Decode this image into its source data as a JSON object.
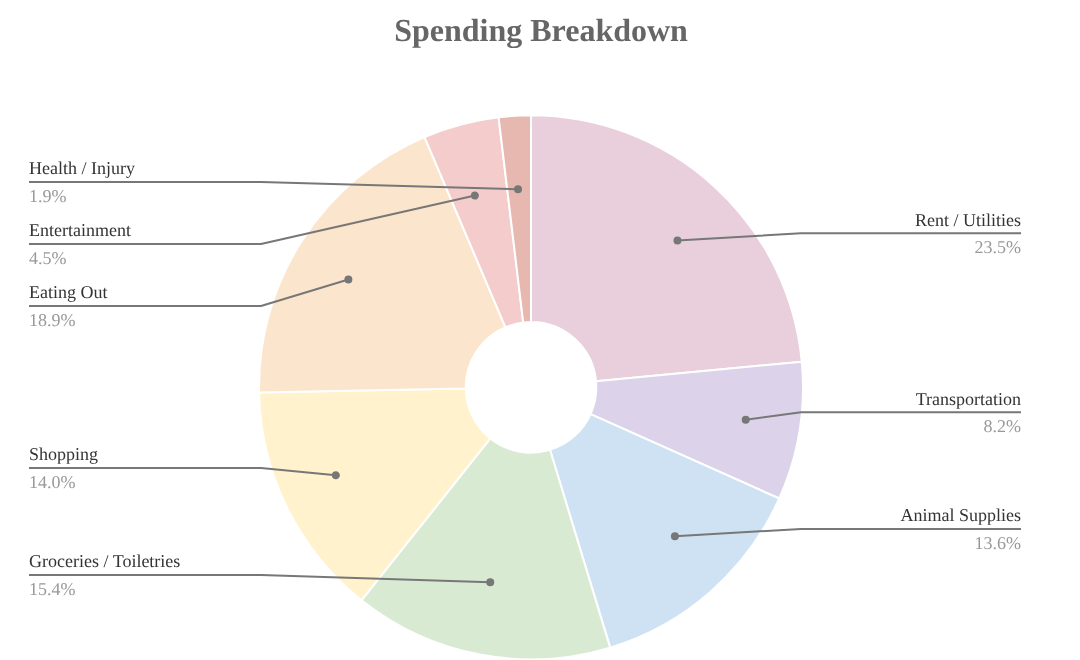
{
  "chart_data": {
    "type": "donut",
    "title": "Spending Breakdown",
    "categories": [
      "Rent / Utilities",
      "Transportation",
      "Animal Supplies",
      "Groceries / Toiletries",
      "Shopping",
      "Eating Out",
      "Entertainment",
      "Health / Injury"
    ],
    "values": [
      23.5,
      8.2,
      13.6,
      15.4,
      14.0,
      18.9,
      4.5,
      1.9
    ],
    "value_labels": [
      "23.5%",
      "8.2%",
      "13.6%",
      "15.4%",
      "14.0%",
      "18.9%",
      "4.5%",
      "1.9%"
    ],
    "colors": [
      "#e9cfdb",
      "#dcd3ea",
      "#cfe2f3",
      "#d9ead3",
      "#fff2cc",
      "#fce5cd",
      "#f4cccc",
      "#e6b8af"
    ]
  }
}
